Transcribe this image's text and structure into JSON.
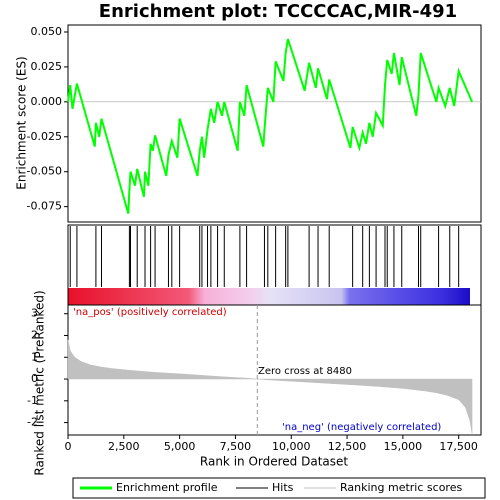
{
  "chart_data": {
    "type": "gsea",
    "title": "Enrichment plot: TCCCCAC,MIR-491",
    "xlabel": "Rank in Ordered Dataset",
    "xlim": [
      0,
      18500
    ],
    "xticks": [
      0,
      {
        "value": 2500,
        "label": "2,500"
      },
      {
        "value": 5000,
        "label": "5,000"
      },
      {
        "value": 7500,
        "label": "7,500"
      },
      {
        "value": 10000,
        "label": "10,000"
      },
      {
        "value": 12500,
        "label": "12,500"
      },
      {
        "value": 15000,
        "label": "15,000"
      },
      {
        "value": 17500,
        "label": "17,500"
      }
    ],
    "es": {
      "ylabel": "Enrichment score (ES)",
      "ylim": [
        -0.086,
        0.055
      ],
      "yticks": [
        {
          "value": 0.05,
          "label": "0.050"
        },
        {
          "value": 0.025,
          "label": "0.025"
        },
        {
          "value": 0,
          "label": "0.000"
        },
        {
          "value": -0.025,
          "label": "-0.025"
        },
        {
          "value": -0.05,
          "label": "-0.050"
        },
        {
          "value": -0.075,
          "label": "-0.075"
        }
      ],
      "series": [
        {
          "name": "Enrichment profile",
          "color": "#00ff00",
          "x": [
            0,
            100,
            200,
            400,
            1200,
            1250,
            1400,
            1500,
            2700,
            2750,
            2800,
            3000,
            3100,
            3400,
            3450,
            3600,
            3700,
            3800,
            3900,
            4400,
            4500,
            4650,
            4900,
            5000,
            5800,
            5900,
            6000,
            6100,
            6250,
            6400,
            6550,
            6700,
            6900,
            7000,
            7600,
            7700,
            7900,
            8000,
            8750,
            8800,
            8950,
            9200,
            9300,
            9650,
            9750,
            9850,
            10600,
            10800,
            11100,
            11200,
            11600,
            11700,
            12650,
            12750,
            13050,
            13200,
            13350,
            13500,
            13650,
            13800,
            14100,
            14200,
            14300,
            14500,
            14600,
            14850,
            14950,
            15600,
            15700,
            15800,
            16500,
            16600,
            16900,
            17100,
            17300,
            17500,
            18100
          ],
          "values": [
            0,
            0.012,
            -0.005,
            0.013,
            -0.032,
            -0.015,
            -0.025,
            -0.012,
            -0.08,
            -0.063,
            -0.05,
            -0.06,
            -0.048,
            -0.068,
            -0.05,
            -0.06,
            -0.03,
            -0.035,
            -0.024,
            -0.053,
            -0.038,
            -0.028,
            -0.04,
            -0.012,
            -0.053,
            -0.035,
            -0.025,
            -0.04,
            -0.02,
            -0.005,
            -0.015,
            0,
            -0.01,
            0,
            -0.035,
            0,
            -0.01,
            0.012,
            -0.032,
            -0.02,
            0.01,
            0,
            0.029,
            0.015,
            0.035,
            0.045,
            0.008,
            0.028,
            0.01,
            0.024,
            0.002,
            0.016,
            -0.033,
            -0.018,
            -0.033,
            -0.022,
            -0.03,
            -0.015,
            -0.025,
            -0.008,
            -0.017,
            0.012,
            0.03,
            0.02,
            0.035,
            0.012,
            0.032,
            -0.01,
            0.005,
            0.035,
            0,
            0.01,
            -0.003,
            0.01,
            -0.003,
            0.022,
            0
          ]
        }
      ]
    },
    "hits": {
      "name": "Hits",
      "color": "#000000",
      "x": [
        100,
        400,
        1250,
        1500,
        2750,
        2800,
        3100,
        3450,
        3700,
        3900,
        4500,
        4650,
        5000,
        5900,
        6000,
        6250,
        6400,
        6700,
        7000,
        7700,
        8000,
        8800,
        8950,
        9300,
        9750,
        9850,
        10800,
        11200,
        11700,
        12750,
        13200,
        13500,
        13800,
        14200,
        14300,
        14600,
        14950,
        15700,
        15800,
        16600,
        17100,
        17500
      ]
    },
    "metric": {
      "name": "Ranking metric scores",
      "color": "#c0c0c0",
      "ylabel": "Ranked list metric (PreRanked)",
      "ylim": [
        -2.57,
        3.4
      ],
      "yticks": [
        3,
        2,
        1,
        0,
        -1,
        -2
      ],
      "x": [
        0,
        100,
        300,
        600,
        1000,
        1500,
        2000,
        3000,
        4000,
        5000,
        6000,
        7000,
        8000,
        8480,
        9000,
        10000,
        11000,
        12000,
        13000,
        14000,
        15000,
        16000,
        16500,
        17000,
        17500,
        17800,
        18000,
        18100
      ],
      "values": [
        1.8,
        1.3,
        1.0,
        0.8,
        0.65,
        0.55,
        0.48,
        0.38,
        0.3,
        0.24,
        0.17,
        0.1,
        0.04,
        0,
        -0.04,
        -0.1,
        -0.16,
        -0.22,
        -0.28,
        -0.35,
        -0.43,
        -0.55,
        -0.63,
        -0.75,
        -0.95,
        -1.3,
        -1.9,
        -2.5
      ]
    },
    "zero_cross": 8480,
    "annotations": [
      "'na_pos' (positively correlated)",
      "Zero cross at 8480",
      "'na_neg' (negatively correlated)"
    ]
  }
}
